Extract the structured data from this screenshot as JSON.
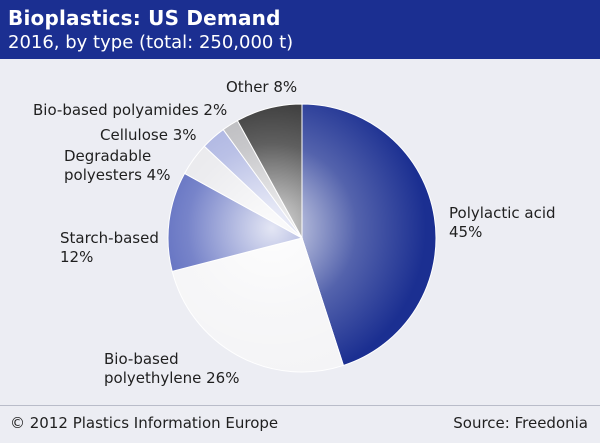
{
  "header": {
    "title": "Bioplastics: US Demand",
    "subtitle": "2016, by type (total: 250,000 t)"
  },
  "footer": {
    "copyright": "© 2012 Plastics Information Europe",
    "source": "Source: Freedonia"
  },
  "colors": {
    "header_bg": "#1b2f91",
    "panel_bg": "#ecedf3"
  },
  "chart_data": {
    "type": "pie",
    "title": "Bioplastics: US Demand",
    "subtitle": "2016, by type (total: 250,000 t)",
    "unit": "%",
    "slices": [
      {
        "label_lines": [
          "Polylactic acid",
          "45%"
        ],
        "value": 45,
        "color": "#1b2f91"
      },
      {
        "label_lines": [
          "Bio-based",
          "polyethylene 26%"
        ],
        "value": 26,
        "color": "#f4f4f6"
      },
      {
        "label_lines": [
          "Starch-based",
          "12%"
        ],
        "value": 12,
        "color": "#4a5bb8"
      },
      {
        "label_lines": [
          "Degradable",
          "polyesters 4%"
        ],
        "value": 4,
        "color": "#e6e6ea"
      },
      {
        "label_lines": [
          "Cellulose 3%"
        ],
        "value": 3,
        "color": "#a3acde"
      },
      {
        "label_lines": [
          "Bio-based polyamides 2%"
        ],
        "value": 2,
        "color": "#b5b5b9"
      },
      {
        "label_lines": [
          "Other 8%"
        ],
        "value": 8,
        "color": "#2a2a2a"
      }
    ]
  }
}
